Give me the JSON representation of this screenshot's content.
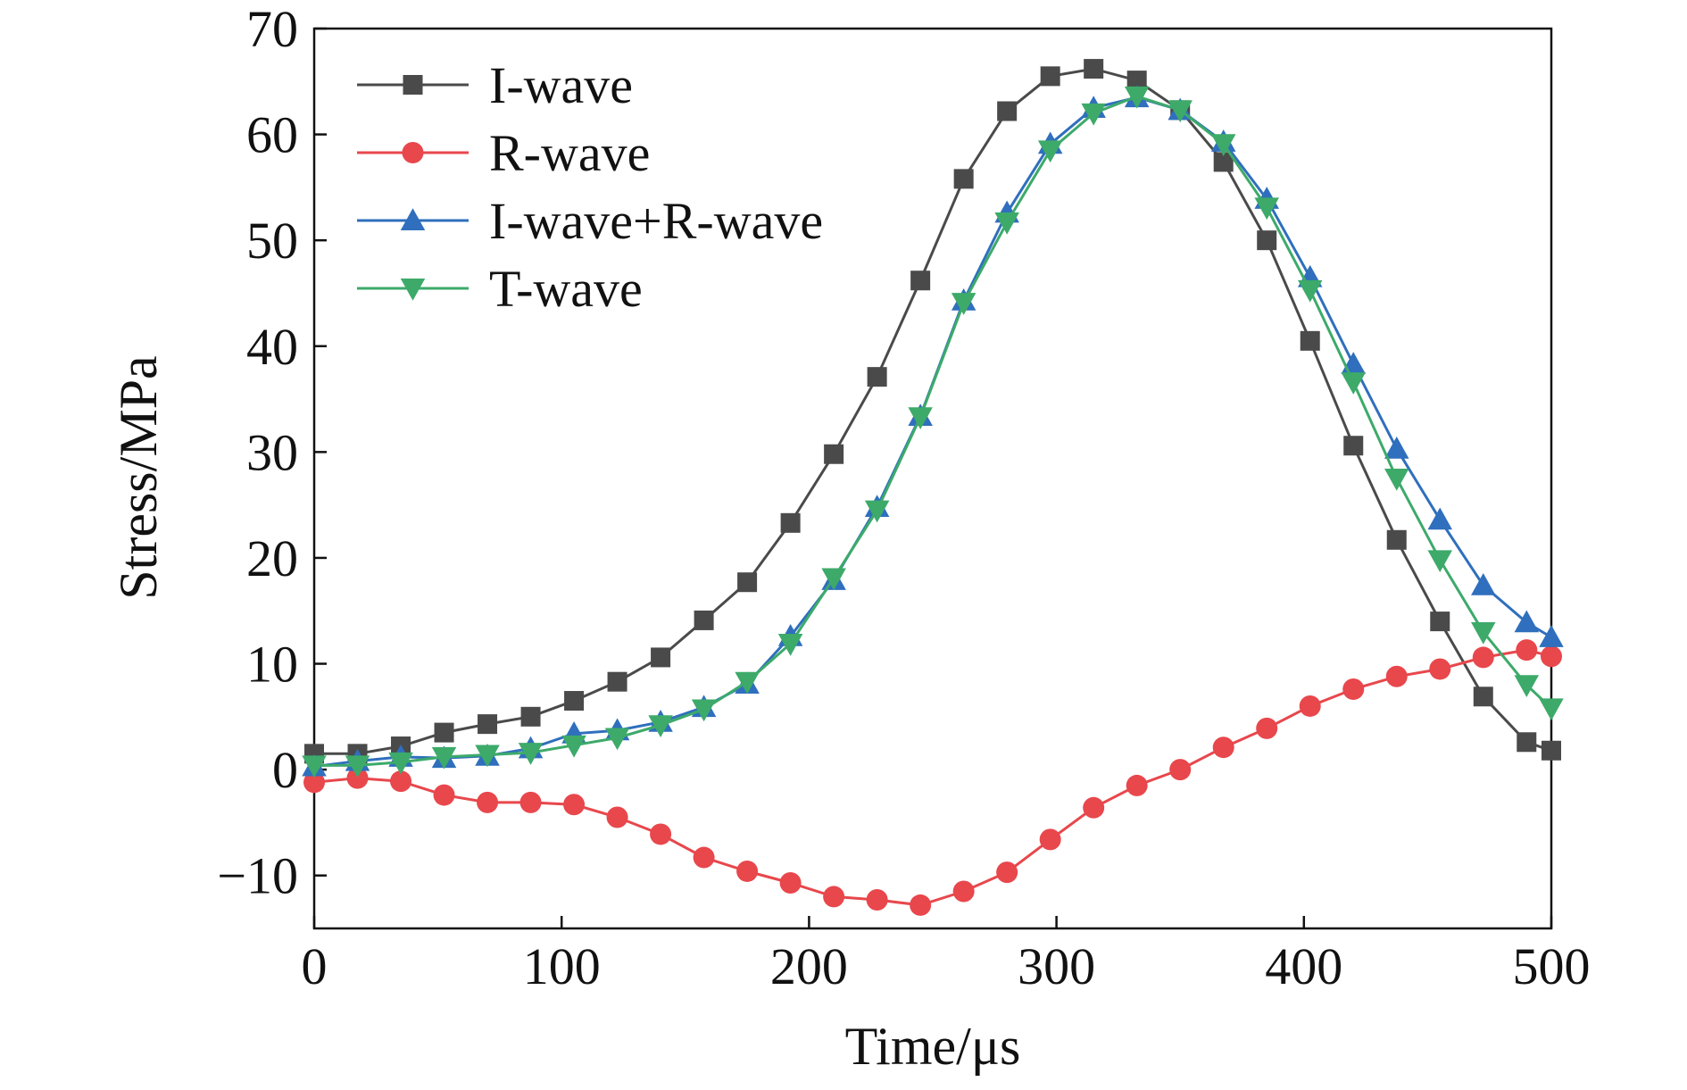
{
  "chart_data": {
    "type": "line",
    "title": "",
    "xlabel": "Time/μs",
    "ylabel": "Stress/MPa",
    "xlim": [
      0,
      500
    ],
    "ylim": [
      -15,
      70
    ],
    "xticks": [
      0,
      100,
      200,
      300,
      400,
      500
    ],
    "yticks": [
      -10,
      0,
      10,
      20,
      30,
      40,
      50,
      60,
      70
    ],
    "xtick_labels": [
      "0",
      "100",
      "200",
      "300",
      "400",
      "500"
    ],
    "ytick_labels": [
      "−10",
      "0",
      "10",
      "20",
      "30",
      "40",
      "50",
      "60",
      "70"
    ],
    "grid": false,
    "legend_position": "top-left",
    "x": [
      0,
      17.5,
      35,
      52.5,
      70,
      87.5,
      105,
      122.5,
      140,
      157.5,
      175,
      192.5,
      210,
      227.5,
      245,
      262.5,
      280,
      297.5,
      315,
      332.5,
      350,
      367.5,
      385,
      402.5,
      420,
      437.5,
      455,
      472.5,
      490,
      500
    ],
    "series": [
      {
        "name": "I-wave",
        "color": "#4a4a4a",
        "marker": "square",
        "values": [
          1.5,
          1.5,
          2.2,
          3.5,
          4.3,
          5.0,
          6.5,
          8.3,
          10.6,
          14.1,
          17.7,
          23.3,
          29.8,
          37.1,
          46.2,
          55.8,
          62.2,
          65.5,
          66.2,
          65.1,
          62.3,
          57.4,
          50.0,
          40.5,
          30.6,
          21.7,
          14.0,
          6.9,
          2.6,
          1.8
        ]
      },
      {
        "name": "R-wave",
        "color": "#e8474c",
        "marker": "circle",
        "values": [
          -1.2,
          -0.8,
          -1.1,
          -2.4,
          -3.1,
          -3.1,
          -3.3,
          -4.5,
          -6.1,
          -8.3,
          -9.6,
          -10.7,
          -12.0,
          -12.3,
          -12.8,
          -11.5,
          -9.7,
          -6.6,
          -3.6,
          -1.5,
          0.0,
          2.1,
          3.9,
          6.0,
          7.6,
          8.8,
          9.5,
          10.6,
          11.3,
          10.7
        ]
      },
      {
        "name": "I-wave+R-wave",
        "color": "#2f6fbd",
        "marker": "triangle-up",
        "values": [
          0.3,
          0.8,
          1.2,
          1.1,
          1.3,
          2.0,
          3.4,
          3.7,
          4.5,
          5.9,
          8.1,
          12.6,
          17.9,
          24.8,
          33.4,
          44.3,
          52.6,
          59.1,
          62.5,
          63.5,
          62.3,
          59.3,
          53.9,
          46.5,
          38.3,
          30.3,
          23.6,
          17.4,
          13.9,
          12.5
        ]
      },
      {
        "name": "T-wave",
        "color": "#3daa6a",
        "marker": "triangle-down",
        "values": [
          0.4,
          0.4,
          0.7,
          1.2,
          1.4,
          1.6,
          2.3,
          3.0,
          4.2,
          5.7,
          8.3,
          11.9,
          18.1,
          24.5,
          33.3,
          44.1,
          51.7,
          58.5,
          62.0,
          63.6,
          62.3,
          59.1,
          53.1,
          45.3,
          36.6,
          27.5,
          19.8,
          13.0,
          8.0,
          5.8
        ]
      }
    ]
  }
}
